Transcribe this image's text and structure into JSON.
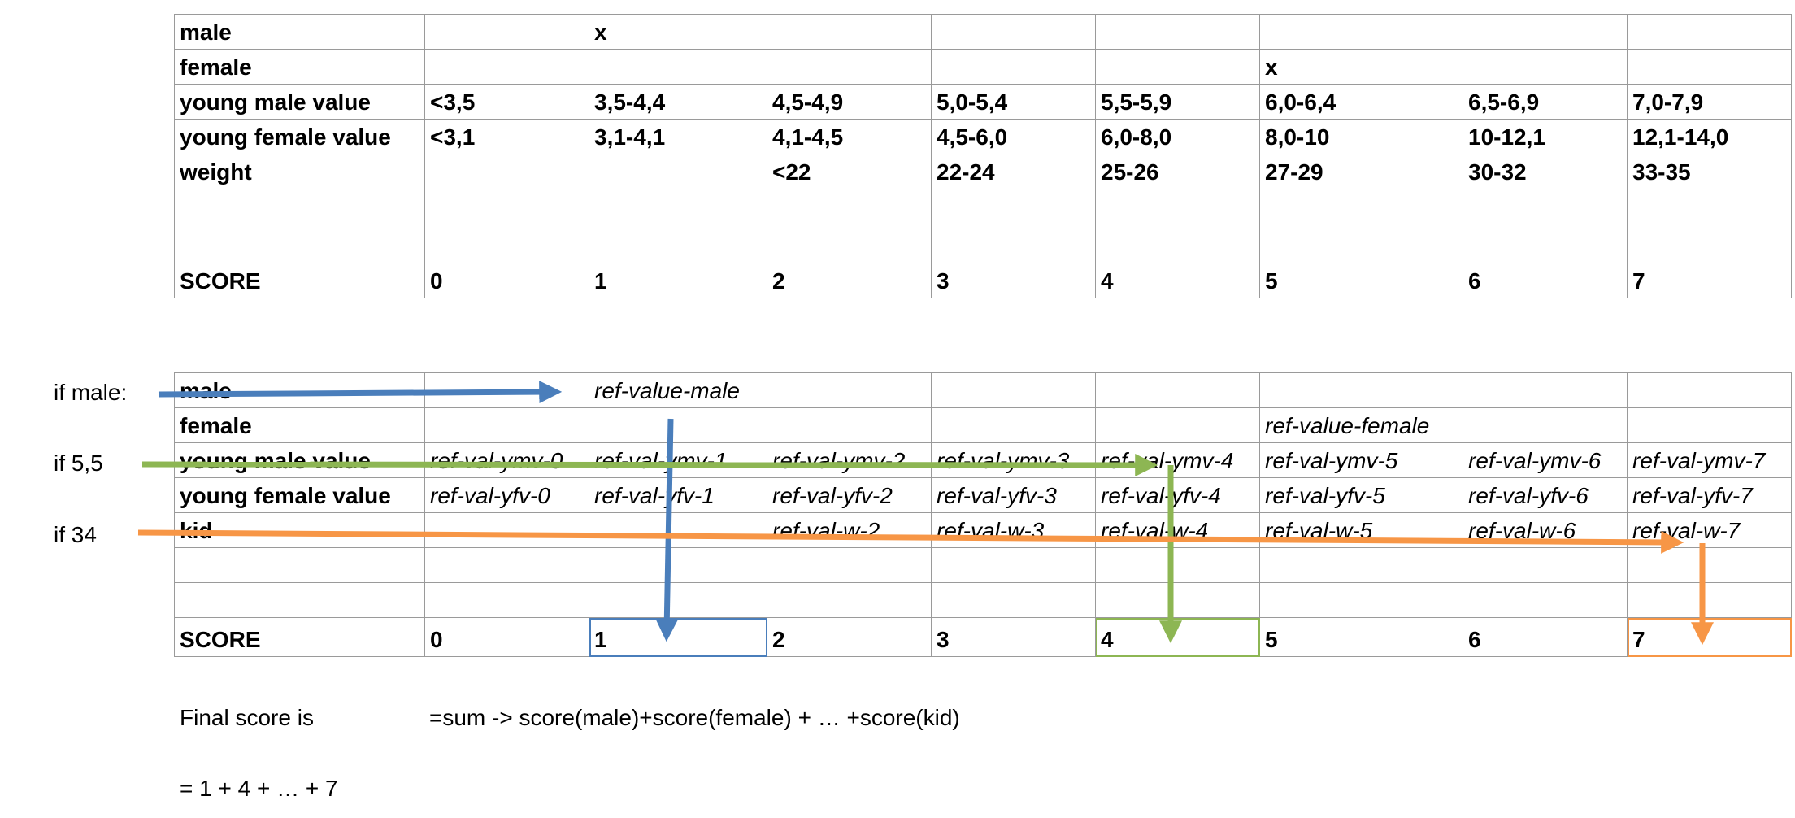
{
  "table1": {
    "rows": [
      {
        "label": "male",
        "cells": [
          "",
          "x",
          "",
          "",
          "",
          "",
          "",
          ""
        ]
      },
      {
        "label": "female",
        "cells": [
          "",
          "",
          "",
          "",
          "",
          "x",
          "",
          ""
        ]
      },
      {
        "label": "young male value",
        "cells": [
          "<3,5",
          "3,5-4,4",
          "4,5-4,9",
          "5,0-5,4",
          "5,5-5,9",
          "6,0-6,4",
          "6,5-6,9",
          "7,0-7,9"
        ]
      },
      {
        "label": "young female value",
        "cells": [
          "<3,1",
          "3,1-4,1",
          "4,1-4,5",
          "4,5-6,0",
          "6,0-8,0",
          "8,0-10",
          "10-12,1",
          "12,1-14,0"
        ]
      },
      {
        "label": "weight",
        "cells": [
          "",
          "",
          "<22",
          "22-24",
          "25-26",
          "27-29",
          "30-32",
          "33-35"
        ]
      },
      {
        "label": "",
        "cells": [
          "",
          "",
          "",
          "",
          "",
          "",
          "",
          ""
        ]
      },
      {
        "label": "",
        "cells": [
          "",
          "",
          "",
          "",
          "",
          "",
          "",
          ""
        ]
      },
      {
        "label": "SCORE",
        "cells": [
          "0",
          "1",
          "2",
          "3",
          "4",
          "5",
          "6",
          "7"
        ]
      }
    ]
  },
  "table2": {
    "rows": [
      {
        "label": "male",
        "cells": [
          "",
          "ref-value-male",
          "",
          "",
          "",
          "",
          "",
          ""
        ]
      },
      {
        "label": "female",
        "cells": [
          "",
          "",
          "",
          "",
          "",
          "ref-value-female",
          "",
          ""
        ]
      },
      {
        "label": "young male value",
        "cells": [
          "ref-val-ymv-0",
          "ref-val-ymv-1",
          "ref-val-ymv-2",
          "ref-val-ymv-3",
          "ref-val-ymv-4",
          "ref-val-ymv-5",
          "ref-val-ymv-6",
          "ref-val-ymv-7"
        ]
      },
      {
        "label": "young female value",
        "cells": [
          "ref-val-yfv-0",
          "ref-val-yfv-1",
          "ref-val-yfv-2",
          "ref-val-yfv-3",
          "ref-val-yfv-4",
          "ref-val-yfv-5",
          "ref-val-yfv-6",
          "ref-val-yfv-7"
        ]
      },
      {
        "label": "kid",
        "cells": [
          "",
          "",
          "ref-val-w-2",
          "ref-val-w-3",
          "ref-val-w-4",
          "ref-val-w-5",
          "ref-val-w-6",
          "ref-val-w-7"
        ]
      },
      {
        "label": "",
        "cells": [
          "",
          "",
          "",
          "",
          "",
          "",
          "",
          ""
        ]
      },
      {
        "label": "",
        "cells": [
          "",
          "",
          "",
          "",
          "",
          "",
          "",
          ""
        ]
      },
      {
        "label": "SCORE",
        "cells": [
          "0",
          "1",
          "2",
          "3",
          "4",
          "5",
          "6",
          "7"
        ]
      }
    ]
  },
  "conditions": {
    "if_male": "if male:",
    "if_value": "if 5,5",
    "if_weight": "if 34"
  },
  "notes": {
    "final_label": "Final score is",
    "formula": "=sum -> score(male)+score(female) + … +score(kid)",
    "sum": "= 1 + 4 + … + 7"
  },
  "colors": {
    "blue_arrow": "#4a7ebb",
    "green_arrow": "#8db653",
    "orange_arrow": "#f79646",
    "grid": "#9a9a9a"
  }
}
